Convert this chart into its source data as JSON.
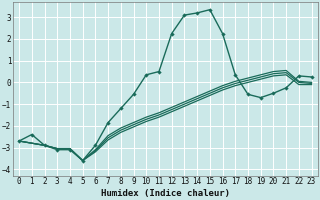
{
  "xlabel": "Humidex (Indice chaleur)",
  "bg_color": "#cbe8e8",
  "grid_color": "#ffffff",
  "line_color": "#1a6b5a",
  "xlim": [
    -0.5,
    23.5
  ],
  "ylim": [
    -4.3,
    3.7
  ],
  "xticks": [
    0,
    1,
    2,
    3,
    4,
    5,
    6,
    7,
    8,
    9,
    10,
    11,
    12,
    13,
    14,
    15,
    16,
    17,
    18,
    19,
    20,
    21,
    22,
    23
  ],
  "yticks": [
    -4,
    -3,
    -2,
    -1,
    0,
    1,
    2,
    3
  ],
  "series1_x": [
    0,
    1,
    2,
    3,
    4,
    5,
    6,
    7,
    8,
    9,
    10,
    11,
    12,
    13,
    14,
    15,
    16,
    17,
    18,
    19,
    20,
    21,
    22,
    23
  ],
  "series1_y": [
    -2.7,
    -2.4,
    -2.9,
    -3.1,
    -3.1,
    -3.6,
    -2.9,
    -1.85,
    -1.2,
    -0.55,
    0.35,
    0.5,
    2.25,
    3.1,
    3.2,
    3.35,
    2.25,
    0.35,
    -0.55,
    -0.7,
    -0.5,
    -0.25,
    0.3,
    0.25
  ],
  "series2_x": [
    0,
    2,
    3,
    4,
    5,
    6,
    7,
    8,
    9,
    10,
    11,
    12,
    13,
    14,
    15,
    16,
    17,
    18,
    19,
    20,
    21,
    22,
    23
  ],
  "series2_y": [
    -2.7,
    -2.9,
    -3.05,
    -3.05,
    -3.6,
    -3.1,
    -2.45,
    -2.1,
    -1.85,
    -1.6,
    -1.4,
    -1.15,
    -0.9,
    -0.65,
    -0.4,
    -0.15,
    0.05,
    0.2,
    0.35,
    0.5,
    0.55,
    0.05,
    0.0
  ],
  "series3_x": [
    0,
    2,
    3,
    4,
    5,
    6,
    7,
    8,
    9,
    10,
    11,
    12,
    13,
    14,
    15,
    16,
    17,
    18,
    19,
    20,
    21,
    22,
    23
  ],
  "series3_y": [
    -2.7,
    -2.9,
    -3.05,
    -3.05,
    -3.6,
    -3.15,
    -2.55,
    -2.2,
    -1.95,
    -1.7,
    -1.5,
    -1.25,
    -1.0,
    -0.75,
    -0.5,
    -0.25,
    -0.05,
    0.1,
    0.25,
    0.4,
    0.45,
    0.0,
    -0.05
  ],
  "series4_x": [
    0,
    2,
    3,
    4,
    5,
    6,
    7,
    8,
    9,
    10,
    11,
    12,
    13,
    14,
    15,
    16,
    17,
    18,
    19,
    20,
    21,
    22,
    23
  ],
  "series4_y": [
    -2.7,
    -2.9,
    -3.05,
    -3.05,
    -3.6,
    -3.2,
    -2.65,
    -2.3,
    -2.05,
    -1.8,
    -1.6,
    -1.35,
    -1.1,
    -0.85,
    -0.6,
    -0.35,
    -0.15,
    0.0,
    0.15,
    0.3,
    0.35,
    -0.1,
    -0.1
  ]
}
